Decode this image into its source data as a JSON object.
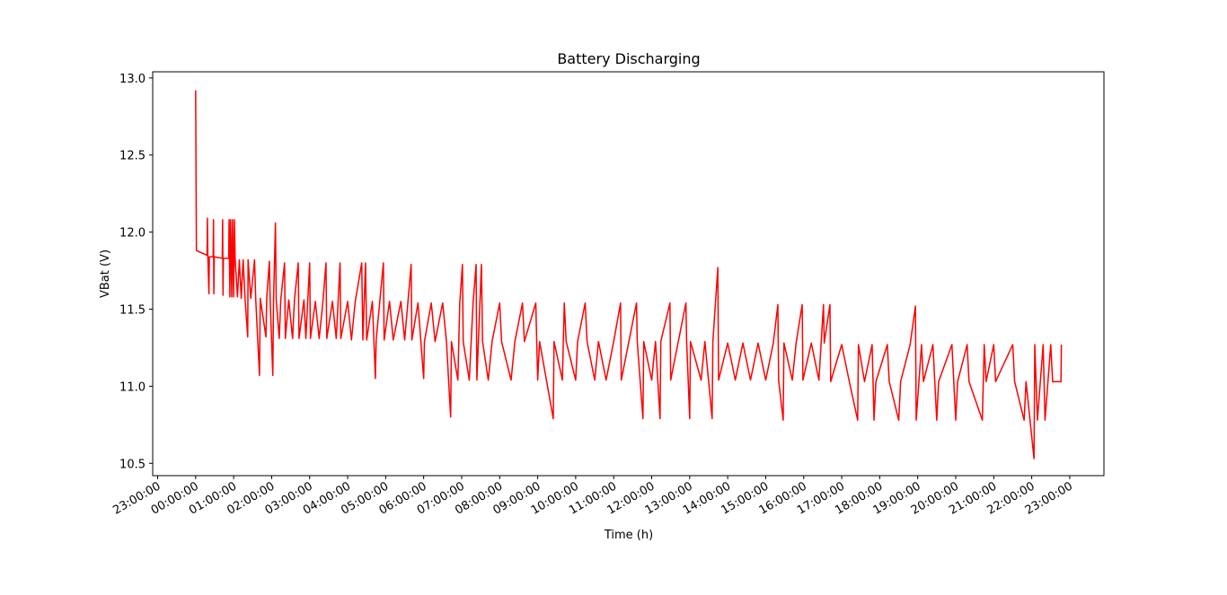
{
  "chart_data": {
    "type": "line",
    "title": "Battery Discharging",
    "xlabel": "Time (h)",
    "ylabel": "VBat (V)",
    "x": [
      0,
      0.02,
      0.3,
      0.31,
      0.32,
      0.35,
      0.36,
      0.46,
      0.47,
      0.48,
      0.49,
      0.7,
      0.71,
      0.72,
      0.73,
      0.87,
      0.88,
      0.9,
      0.92,
      0.95,
      0.97,
      1.0,
      1.02,
      1.04,
      1.1,
      1.15,
      1.2,
      1.25,
      1.3,
      1.37,
      1.38,
      1.45,
      1.55,
      1.58,
      1.68,
      1.7,
      1.85,
      1.87,
      1.94,
      1.96,
      2.03,
      2.05,
      2.1,
      2.12,
      2.2,
      2.24,
      2.34,
      2.36,
      2.45,
      2.55,
      2.6,
      2.7,
      2.72,
      2.85,
      2.9,
      3.0,
      3.02,
      3.15,
      3.25,
      3.35,
      3.43,
      3.45,
      3.6,
      3.7,
      3.8,
      3.82,
      4.0,
      4.1,
      4.2,
      4.37,
      4.4,
      4.47,
      4.5,
      4.65,
      4.73,
      4.75,
      4.94,
      4.96,
      5.1,
      5.2,
      5.4,
      5.5,
      5.67,
      5.69,
      5.85,
      6.0,
      6.02,
      6.2,
      6.3,
      6.5,
      6.6,
      6.71,
      6.73,
      6.9,
      6.95,
      7.02,
      7.04,
      7.2,
      7.3,
      7.38,
      7.4,
      7.52,
      7.55,
      7.7,
      7.8,
      8.0,
      8.05,
      8.3,
      8.4,
      8.6,
      8.65,
      8.95,
      9.0,
      9.05,
      9.41,
      9.43,
      9.65,
      9.7,
      9.75,
      10.0,
      10.05,
      10.25,
      10.3,
      10.5,
      10.6,
      10.8,
      11.0,
      11.18,
      11.2,
      11.4,
      11.6,
      11.62,
      11.77,
      11.79,
      12.0,
      12.1,
      12.22,
      12.24,
      12.48,
      12.5,
      12.7,
      12.9,
      12.92,
      13.0,
      13.02,
      13.3,
      13.4,
      13.59,
      13.61,
      13.74,
      13.76,
      14.0,
      14.2,
      14.4,
      14.6,
      14.8,
      15.0,
      15.2,
      15.32,
      15.34,
      15.46,
      15.48,
      15.7,
      15.8,
      15.96,
      15.98,
      16.2,
      16.4,
      16.52,
      16.54,
      16.69,
      16.71,
      17.0,
      17.2,
      17.42,
      17.44,
      17.6,
      17.8,
      17.85,
      17.9,
      18.2,
      18.25,
      18.5,
      18.55,
      18.8,
      18.94,
      18.96,
      19.1,
      19.15,
      19.4,
      19.5,
      19.55,
      19.9,
      20.0,
      20.05,
      20.3,
      20.35,
      20.7,
      20.75,
      20.8,
      21.0,
      21.05,
      21.5,
      21.55,
      21.8,
      21.85,
      22.06,
      22.08,
      22.15,
      22.3,
      22.35,
      22.5,
      22.55,
      22.77,
      22.78
    ],
    "series": [
      {
        "name": "VBat",
        "color": "#ff0000",
        "values": [
          12.92,
          11.88,
          11.85,
          12.09,
          11.85,
          11.6,
          11.84,
          11.84,
          12.08,
          11.6,
          11.84,
          11.83,
          12.08,
          11.59,
          11.83,
          11.83,
          12.08,
          11.58,
          12.08,
          11.58,
          12.08,
          11.58,
          12.08,
          11.82,
          11.58,
          11.82,
          11.57,
          11.82,
          11.57,
          11.32,
          11.82,
          11.57,
          11.82,
          11.57,
          11.07,
          11.57,
          11.32,
          11.57,
          11.81,
          11.57,
          11.07,
          11.56,
          12.06,
          11.56,
          11.31,
          11.56,
          11.8,
          11.31,
          11.56,
          11.31,
          11.56,
          11.8,
          11.31,
          11.56,
          11.31,
          11.8,
          11.31,
          11.55,
          11.31,
          11.55,
          11.8,
          11.31,
          11.55,
          11.31,
          11.8,
          11.31,
          11.55,
          11.3,
          11.55,
          11.8,
          11.3,
          11.8,
          11.3,
          11.55,
          11.05,
          11.3,
          11.8,
          11.3,
          11.55,
          11.3,
          11.55,
          11.3,
          11.79,
          11.3,
          11.54,
          11.05,
          11.29,
          11.54,
          11.29,
          11.54,
          11.29,
          10.8,
          11.29,
          11.04,
          11.54,
          11.79,
          11.29,
          11.04,
          11.54,
          11.79,
          11.04,
          11.79,
          11.29,
          11.04,
          11.29,
          11.54,
          11.29,
          11.04,
          11.29,
          11.54,
          11.29,
          11.54,
          11.04,
          11.29,
          10.79,
          11.29,
          11.04,
          11.54,
          11.29,
          11.04,
          11.29,
          11.54,
          11.29,
          11.04,
          11.29,
          11.04,
          11.29,
          11.54,
          11.04,
          11.29,
          11.54,
          11.29,
          10.79,
          11.29,
          11.04,
          11.29,
          10.79,
          11.29,
          11.54,
          11.04,
          11.29,
          11.54,
          11.29,
          10.79,
          11.29,
          11.04,
          11.29,
          10.79,
          11.29,
          11.77,
          11.04,
          11.28,
          11.04,
          11.28,
          11.04,
          11.28,
          11.04,
          11.28,
          11.53,
          11.04,
          10.78,
          11.28,
          11.04,
          11.28,
          11.53,
          11.04,
          11.28,
          11.04,
          11.53,
          11.28,
          11.53,
          11.03,
          11.27,
          11.03,
          10.78,
          11.27,
          11.03,
          11.27,
          10.78,
          11.03,
          11.27,
          11.03,
          10.78,
          11.03,
          11.27,
          11.52,
          10.78,
          11.27,
          11.03,
          11.27,
          10.78,
          11.03,
          11.27,
          10.78,
          11.03,
          11.27,
          11.03,
          10.78,
          11.27,
          11.03,
          11.27,
          11.03,
          11.27,
          11.03,
          10.78,
          11.03,
          10.53,
          11.27,
          10.78,
          11.27,
          10.78,
          11.27,
          11.03,
          11.03,
          11.27
        ]
      }
    ],
    "xlim": [
      -1.13,
      23.9
    ],
    "xticks": [
      {
        "value": -1,
        "label": "23:00:00"
      },
      {
        "value": 0,
        "label": "00:00:00"
      },
      {
        "value": 1,
        "label": "01:00:00"
      },
      {
        "value": 2,
        "label": "02:00:00"
      },
      {
        "value": 3,
        "label": "03:00:00"
      },
      {
        "value": 4,
        "label": "04:00:00"
      },
      {
        "value": 5,
        "label": "05:00:00"
      },
      {
        "value": 6,
        "label": "06:00:00"
      },
      {
        "value": 7,
        "label": "07:00:00"
      },
      {
        "value": 8,
        "label": "08:00:00"
      },
      {
        "value": 9,
        "label": "09:00:00"
      },
      {
        "value": 10,
        "label": "10:00:00"
      },
      {
        "value": 11,
        "label": "11:00:00"
      },
      {
        "value": 12,
        "label": "12:00:00"
      },
      {
        "value": 13,
        "label": "13:00:00"
      },
      {
        "value": 14,
        "label": "14:00:00"
      },
      {
        "value": 15,
        "label": "15:00:00"
      },
      {
        "value": 16,
        "label": "16:00:00"
      },
      {
        "value": 17,
        "label": "17:00:00"
      },
      {
        "value": 18,
        "label": "18:00:00"
      },
      {
        "value": 19,
        "label": "19:00:00"
      },
      {
        "value": 20,
        "label": "20:00:00"
      },
      {
        "value": 21,
        "label": "21:00:00"
      },
      {
        "value": 22,
        "label": "22:00:00"
      },
      {
        "value": 23,
        "label": "23:00:00"
      }
    ],
    "ylim": [
      10.42,
      13.04
    ],
    "yticks": [
      10.5,
      {
        "value": 11,
        "label": "11.0"
      },
      11.5,
      {
        "value": 12,
        "label": "12.0"
      },
      12.5,
      {
        "value": 13,
        "label": "13.0"
      }
    ],
    "grid": false
  }
}
